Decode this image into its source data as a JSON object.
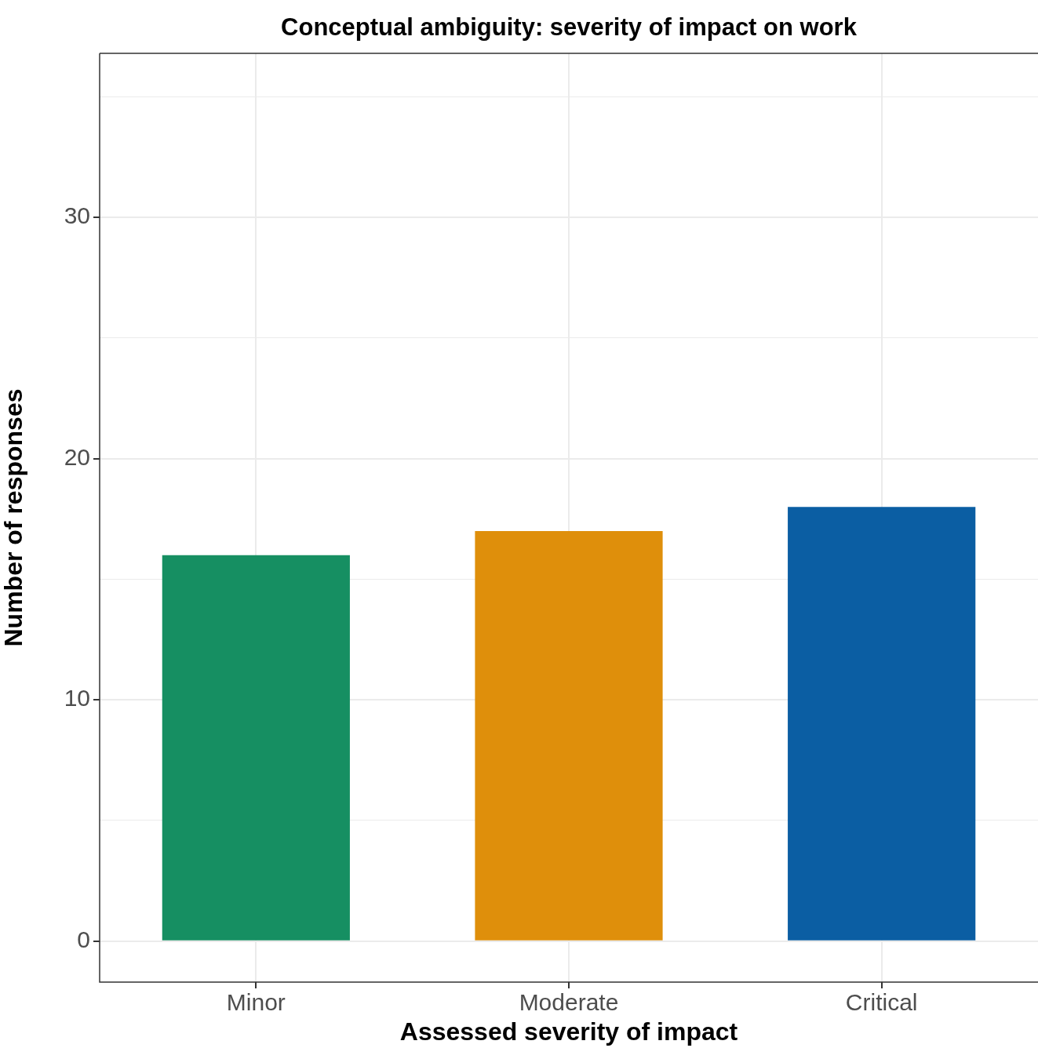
{
  "chart_data": {
    "type": "bar",
    "title": "Conceptual ambiguity: severity of impact on work",
    "xlabel": "Assessed severity of impact",
    "ylabel": "Number of responses",
    "categories": [
      "Minor",
      "Moderate",
      "Critical"
    ],
    "values": [
      16,
      17,
      18
    ],
    "colors": [
      "#168f62",
      "#df8f0b",
      "#0b5ea3"
    ],
    "ylim": [
      -1.7,
      36.8
    ],
    "yticks": [
      0,
      {
        "value": 5,
        "label": null
      },
      10,
      {
        "value": 15,
        "label": null
      },
      20,
      {
        "value": 25,
        "label": null
      },
      30,
      {
        "value": 35,
        "label": null
      }
    ],
    "grid": true
  }
}
